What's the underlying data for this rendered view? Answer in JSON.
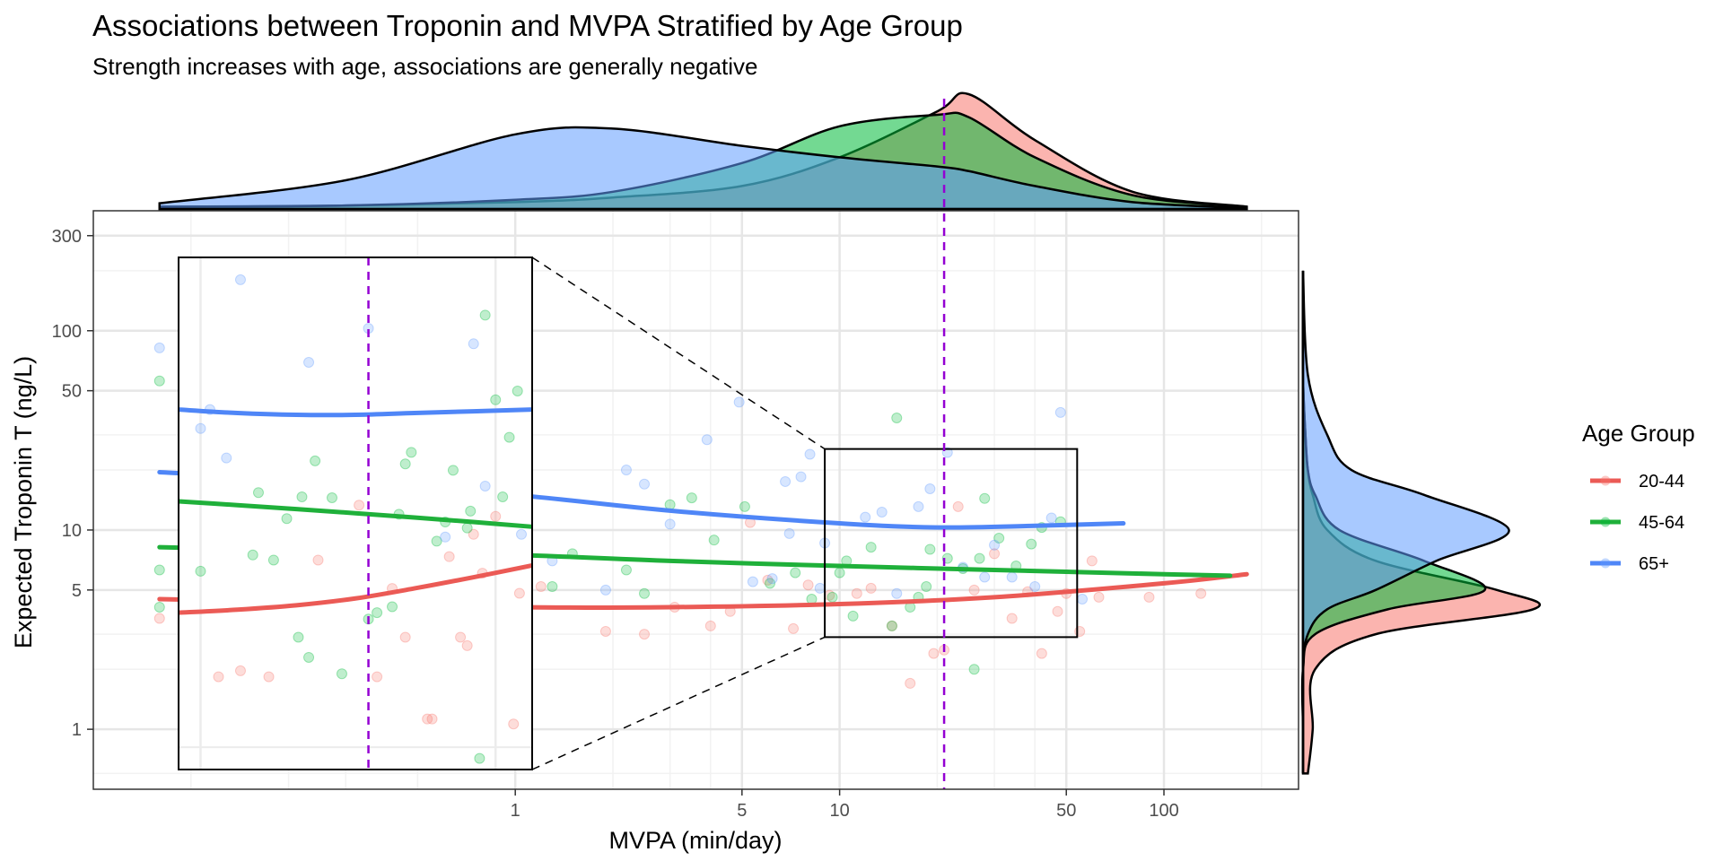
{
  "chart_data": {
    "type": "scatter",
    "title": "Associations between Troponin and MVPA Stratified by Age Group",
    "subtitle": "Strength increases with age, associations are generally negative",
    "xlabel": "MVPA (min/day)",
    "ylabel": "Expected Troponin T (ng/L)",
    "x_scale": "log",
    "y_scale": "log",
    "xlim": [
      0.05,
      260
    ],
    "ylim": [
      0.5,
      400
    ],
    "x_ticks": [
      1,
      5,
      10,
      50,
      100
    ],
    "x_tick_labels": [
      "1",
      "5",
      "10",
      "50",
      "100"
    ],
    "y_ticks": [
      1,
      5,
      10,
      50,
      100,
      300
    ],
    "y_tick_labels": [
      "1",
      "5",
      "10",
      "50",
      "100",
      "300"
    ],
    "grid": true,
    "reference_line_x": 21,
    "reference_line_color": "#9400D3",
    "legend": {
      "title": "Age Group",
      "position": "right",
      "entries": [
        "20-44",
        "45-64",
        "65+"
      ]
    },
    "colors": {
      "20-44": "#F8766D",
      "45-64": "#00BA38",
      "65+": "#619CFF",
      "line_20-44": "#EB5A55",
      "line_45-64": "#1FB03A",
      "line_65+": "#4F86F7",
      "overlap_fill": "#6A9DB8"
    },
    "series": [
      {
        "name": "20-44",
        "fit_x": [
          0.08,
          0.3,
          1,
          3,
          10,
          30,
          100,
          180
        ],
        "fit_y": [
          4.5,
          4.3,
          4.1,
          4.1,
          4.25,
          4.6,
          5.4,
          6.0
        ],
        "points": [
          [
            0.08,
            3.6
          ],
          [
            0.6,
            9.5
          ],
          [
            1.2,
            5.2
          ],
          [
            1.9,
            3.1
          ],
          [
            2.5,
            3.0
          ],
          [
            3.1,
            4.1
          ],
          [
            4.0,
            3.3
          ],
          [
            4.6,
            3.9
          ],
          [
            5.3,
            10.9
          ],
          [
            6.0,
            5.6
          ],
          [
            7.2,
            3.2
          ],
          [
            8.0,
            5.3
          ],
          [
            9.3,
            4.7
          ],
          [
            11.3,
            4.8
          ],
          [
            12.5,
            5.1
          ],
          [
            14.5,
            3.3
          ],
          [
            16.5,
            1.7
          ],
          [
            19.5,
            2.4
          ],
          [
            21.0,
            2.5
          ],
          [
            23.2,
            13.1
          ],
          [
            26.0,
            5.0
          ],
          [
            30.0,
            7.6
          ],
          [
            34.0,
            3.6
          ],
          [
            38.0,
            4.9
          ],
          [
            42.0,
            2.4
          ],
          [
            47.0,
            3.9
          ],
          [
            50.0,
            4.8
          ],
          [
            55.0,
            3.1
          ],
          [
            60.0,
            7.0
          ],
          [
            63.0,
            4.6
          ],
          [
            90.0,
            4.6
          ],
          [
            130.0,
            4.8
          ]
        ]
      },
      {
        "name": "45-64",
        "fit_x": [
          0.08,
          0.3,
          1,
          3,
          10,
          30,
          100,
          160
        ],
        "fit_y": [
          8.2,
          7.8,
          7.5,
          7.0,
          6.6,
          6.3,
          6.0,
          5.9
        ],
        "points": [
          [
            0.08,
            6.3
          ],
          [
            0.08,
            4.1
          ],
          [
            0.08,
            56.0
          ],
          [
            0.6,
            11.0
          ],
          [
            1.3,
            5.2
          ],
          [
            1.5,
            7.6
          ],
          [
            2.2,
            6.3
          ],
          [
            2.5,
            4.8
          ],
          [
            3.0,
            13.4
          ],
          [
            3.5,
            14.5
          ],
          [
            4.1,
            8.9
          ],
          [
            5.1,
            13.1
          ],
          [
            6.1,
            5.4
          ],
          [
            7.3,
            6.1
          ],
          [
            8.2,
            4.5
          ],
          [
            9.5,
            4.6
          ],
          [
            10.0,
            6.1
          ],
          [
            10.5,
            7.0
          ],
          [
            11.0,
            3.7
          ],
          [
            12.5,
            8.2
          ],
          [
            14.5,
            3.3
          ],
          [
            15.0,
            36.5
          ],
          [
            16.5,
            4.1
          ],
          [
            17.5,
            4.6
          ],
          [
            18.5,
            5.2
          ],
          [
            19.0,
            8.0
          ],
          [
            21.5,
            7.2
          ],
          [
            24.0,
            6.4
          ],
          [
            26.0,
            2.0
          ],
          [
            27.0,
            7.2
          ],
          [
            28.0,
            14.4
          ],
          [
            31.0,
            9.1
          ],
          [
            35.0,
            6.6
          ],
          [
            39.0,
            8.5
          ],
          [
            42.0,
            10.3
          ],
          [
            48.0,
            11.0
          ]
        ]
      },
      {
        "name": "65+",
        "fit_x": [
          0.08,
          0.3,
          1,
          3,
          10,
          20,
          40,
          75
        ],
        "fit_y": [
          19.5,
          17.5,
          15.0,
          12.5,
          10.8,
          10.3,
          10.5,
          10.8
        ],
        "points": [
          [
            0.08,
            82.0
          ],
          [
            1.0,
            45.0
          ],
          [
            1.3,
            7.0
          ],
          [
            1.9,
            5.0
          ],
          [
            2.2,
            20.0
          ],
          [
            2.5,
            17.0
          ],
          [
            3.0,
            10.7
          ],
          [
            3.9,
            28.4
          ],
          [
            4.9,
            43.8
          ],
          [
            5.4,
            5.5
          ],
          [
            6.2,
            5.7
          ],
          [
            6.8,
            17.5
          ],
          [
            7.0,
            9.6
          ],
          [
            7.6,
            18.5
          ],
          [
            8.1,
            24.0
          ],
          [
            8.7,
            5.1
          ],
          [
            9.0,
            8.6
          ],
          [
            12.0,
            11.6
          ],
          [
            13.5,
            12.3
          ],
          [
            15.0,
            4.8
          ],
          [
            17.5,
            13.1
          ],
          [
            19.0,
            16.1
          ],
          [
            21.5,
            24.5
          ],
          [
            24.0,
            6.5
          ],
          [
            28.0,
            5.8
          ],
          [
            30.0,
            8.4
          ],
          [
            34.0,
            5.8
          ],
          [
            40.0,
            5.2
          ],
          [
            45.0,
            11.5
          ],
          [
            48.0,
            38.9
          ],
          [
            56.0,
            4.5
          ]
        ]
      }
    ],
    "zoom_inset": {
      "source_xlim": [
        9,
        54
      ],
      "source_ylim": [
        2.9,
        25.5
      ],
      "fit_y_20-44": [
        3.0,
        3.1,
        3.25,
        3.5,
        3.9,
        4.4,
        5.0
      ],
      "fit_y_45-64": [
        10.0,
        9.6,
        9.2,
        8.8,
        8.4,
        8.0,
        7.6
      ],
      "fit_y_65+": [
        27.0,
        26.0,
        25.5,
        25.5,
        26.0,
        26.5,
        27.0
      ],
      "points_20-44": [
        [
          0.12,
          1.5
        ],
        [
          0.15,
          1.6
        ],
        [
          0.2,
          1.5
        ],
        [
          0.33,
          5.3
        ],
        [
          0.5,
          9.6
        ],
        [
          0.6,
          1.5
        ],
        [
          0.7,
          3.9
        ],
        [
          0.8,
          2.3
        ],
        [
          1.0,
          0.95
        ],
        [
          1.05,
          0.95
        ],
        [
          1.25,
          5.5
        ],
        [
          1.4,
          2.3
        ],
        [
          1.5,
          2.1
        ],
        [
          1.6,
          7.0
        ],
        [
          1.75,
          4.6
        ],
        [
          2.0,
          8.5
        ],
        [
          2.4,
          0.9
        ],
        [
          2.55,
          3.7
        ]
      ],
      "points_45-64": [
        [
          0.1,
          4.7
        ],
        [
          0.17,
          5.6
        ],
        [
          0.18,
          11.0
        ],
        [
          0.21,
          5.3
        ],
        [
          0.24,
          8.3
        ],
        [
          0.27,
          2.3
        ],
        [
          0.28,
          10.5
        ],
        [
          0.3,
          1.85
        ],
        [
          0.32,
          15.5
        ],
        [
          0.38,
          10.4
        ],
        [
          0.42,
          1.55
        ],
        [
          0.55,
          2.8
        ],
        [
          0.6,
          3.0
        ],
        [
          0.7,
          3.2
        ],
        [
          0.75,
          8.7
        ],
        [
          0.8,
          15.0
        ],
        [
          0.85,
          17.0
        ],
        [
          1.1,
          6.5
        ],
        [
          1.2,
          8.0
        ],
        [
          1.3,
          14.0
        ],
        [
          1.5,
          7.5
        ],
        [
          1.55,
          9.0
        ],
        [
          1.7,
          0.62
        ],
        [
          1.8,
          75.0
        ],
        [
          2.0,
          30.0
        ],
        [
          2.15,
          10.5
        ],
        [
          2.3,
          20.0
        ],
        [
          2.5,
          33.0
        ]
      ],
      "points_65+": [
        [
          0.1,
          22.0
        ],
        [
          0.11,
          27.0
        ],
        [
          0.13,
          16.0
        ],
        [
          0.15,
          110.0
        ],
        [
          0.3,
          45.0
        ],
        [
          0.55,
          65.0
        ],
        [
          1.2,
          6.8
        ],
        [
          1.6,
          55.0
        ],
        [
          1.8,
          11.8
        ],
        [
          2.6,
          7.0
        ]
      ]
    },
    "marginal_density_x": {
      "x": [
        0.08,
        0.3,
        1,
        2,
        5,
        10,
        20,
        25,
        40,
        80,
        180
      ],
      "20-44": [
        0.02,
        0.03,
        0.06,
        0.1,
        0.2,
        0.45,
        0.85,
        1.0,
        0.6,
        0.15,
        0.02
      ],
      "45-64": [
        0.02,
        0.03,
        0.08,
        0.15,
        0.4,
        0.72,
        0.82,
        0.8,
        0.45,
        0.12,
        0.02
      ],
      "65+": [
        0.05,
        0.25,
        0.65,
        0.7,
        0.55,
        0.45,
        0.37,
        0.33,
        0.2,
        0.06,
        0.01
      ]
    },
    "marginal_density_y": {
      "y": [
        0.6,
        1,
        2,
        3,
        4,
        5,
        7,
        10,
        15,
        20,
        30,
        60,
        200
      ],
      "20-44": [
        0.02,
        0.04,
        0.05,
        0.3,
        0.95,
        0.8,
        0.3,
        0.1,
        0.04,
        0.02,
        0.01,
        0.0,
        0.0
      ],
      "45-64": [
        0.0,
        0.0,
        0.0,
        0.05,
        0.35,
        0.75,
        0.5,
        0.15,
        0.05,
        0.02,
        0.01,
        0.0,
        0.0
      ],
      "65+": [
        0.0,
        0.0,
        0.0,
        0.02,
        0.1,
        0.3,
        0.55,
        0.85,
        0.5,
        0.2,
        0.1,
        0.02,
        0.0
      ]
    }
  }
}
